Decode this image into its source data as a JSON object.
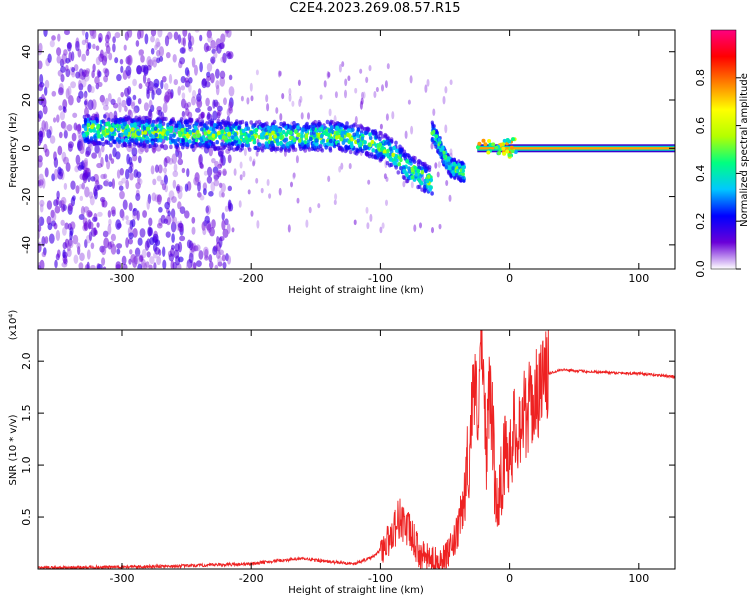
{
  "title": "C2E4.2023.269.08.57.R15",
  "chart_data": [
    {
      "type": "heatmap",
      "xlabel": "Height of straight line (km)",
      "ylabel": "Frequency (Hz)",
      "xlim": [
        -365,
        128
      ],
      "ylim": [
        -50,
        49
      ],
      "xticks": [
        -300,
        -200,
        -100,
        0,
        100
      ],
      "xtick_labels": [
        "-300",
        "-200",
        "-100",
        "0",
        "100"
      ],
      "yticks": [
        -40,
        -20,
        0,
        20,
        40
      ],
      "ytick_labels": [
        "-40",
        "-20",
        "0",
        "20",
        "40"
      ],
      "colorbar": {
        "label": "Normalized spectral amplitude",
        "range": [
          0,
          1
        ],
        "ticks": [
          0.0,
          0.2,
          0.4,
          0.6,
          0.8
        ],
        "tick_labels": [
          "0.0",
          "0.2",
          "0.4",
          "0.6",
          "0.8"
        ],
        "colors": [
          "#ffffff",
          "#6a00d8",
          "#0000ff",
          "#00c8ff",
          "#00ff80",
          "#b4ff00",
          "#ffff00",
          "#ff8000",
          "#ff0000",
          "#ff0080"
        ]
      },
      "ridge": {
        "name": "",
        "x": [
          -330,
          -300,
          -250,
          -200,
          -160,
          -130,
          -110,
          -90,
          -80,
          -70,
          -60
        ],
        "y": [
          8,
          7,
          6,
          5,
          5,
          5,
          3,
          -2,
          -8,
          -11,
          -14
        ],
        "peak_amplitude": 0.35
      },
      "secondary_ridge": {
        "x": [
          -60,
          -55,
          -50,
          -45,
          -40,
          -35
        ],
        "y": [
          7,
          2,
          -4,
          -8,
          -9,
          -10
        ],
        "peak_amplitude": 0.3
      },
      "carrier_line": {
        "x_start": -25,
        "x_end": 128,
        "y": 0,
        "amplitude": 0.75
      },
      "noise_region_x": [
        -365,
        -215
      ],
      "grid": false
    },
    {
      "type": "line",
      "xlabel": "Height of straight line (km)",
      "ylabel": "SNR (10 * v/v)",
      "scale_label": "(x10⁴)",
      "xlim": [
        -365,
        128
      ],
      "ylim": [
        0,
        2.3
      ],
      "xticks": [
        -300,
        -200,
        -100,
        0,
        100
      ],
      "xtick_labels": [
        "-300",
        "-200",
        "-100",
        "0",
        "100"
      ],
      "yticks": [
        0.5,
        1.0,
        1.5,
        2.0
      ],
      "ytick_labels": [
        "0.5",
        "1.0",
        "1.5",
        "2.0"
      ],
      "series": [
        {
          "color": "#ee2222",
          "x": [
            -365,
            -300,
            -250,
            -200,
            -180,
            -160,
            -140,
            -120,
            -105,
            -95,
            -85,
            -80,
            -75,
            -70,
            -60,
            -50,
            -45,
            -40,
            -35,
            -30,
            -28,
            -25,
            -22,
            -20,
            -18,
            -15,
            -12,
            -10,
            -5,
            0,
            5,
            10,
            15,
            20,
            25,
            30,
            40,
            60,
            80,
            100,
            110,
            128
          ],
          "y": [
            0.01,
            0.02,
            0.03,
            0.05,
            0.08,
            0.1,
            0.07,
            0.05,
            0.12,
            0.25,
            0.5,
            0.4,
            0.3,
            0.15,
            0.08,
            0.1,
            0.2,
            0.35,
            0.7,
            1.3,
            1.9,
            1.5,
            2.2,
            1.6,
            1.2,
            1.8,
            1.0,
            0.6,
            1.0,
            1.2,
            1.35,
            1.45,
            1.55,
            1.65,
            1.8,
            1.88,
            1.92,
            1.9,
            1.89,
            1.88,
            1.87,
            1.85
          ]
        }
      ],
      "grid": false
    }
  ]
}
